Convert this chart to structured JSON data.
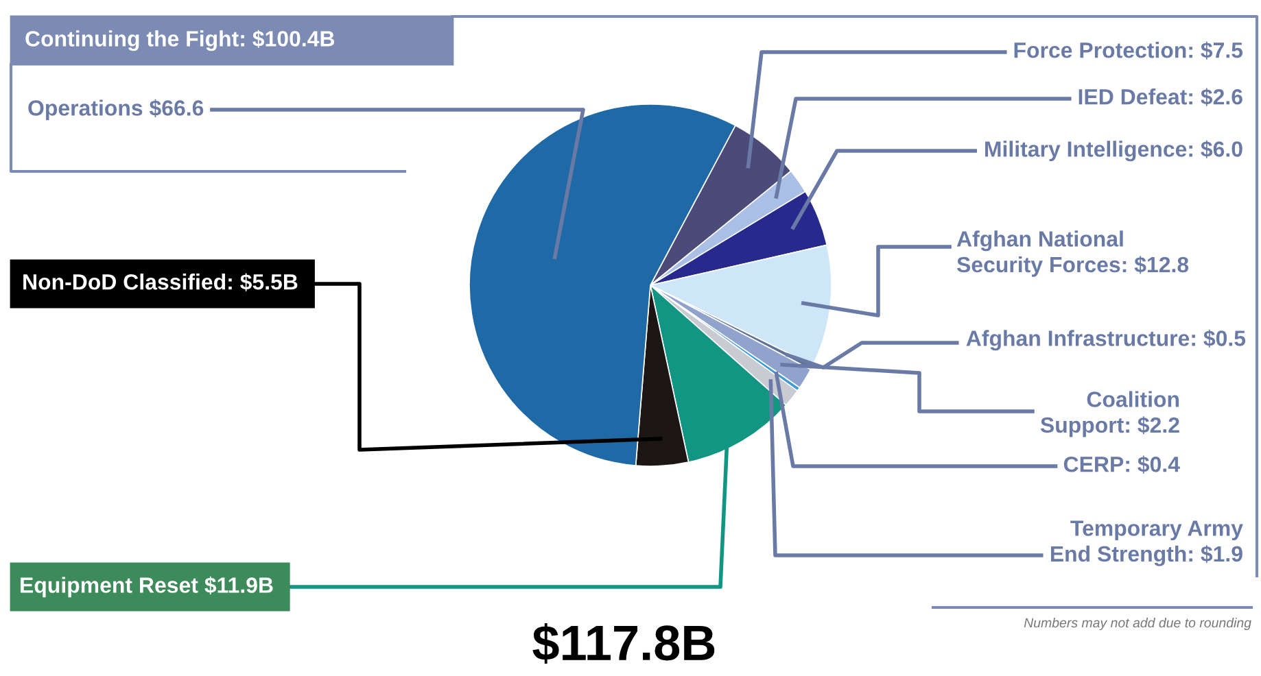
{
  "chart_data": {
    "type": "pie",
    "categories": [
      "Force Protection",
      "IED Defeat",
      "Military Intelligence",
      "Afghan National\nSecurity Forces",
      "Afghan Infrastructure",
      "Coalition\nSupport",
      "CERP",
      "Temporary Army\nEnd Strength",
      "Equipment Reset",
      "Non-DoD Classified",
      "Operations"
    ],
    "values": [
      7.5,
      2.6,
      6.0,
      12.8,
      0.5,
      2.2,
      0.4,
      1.9,
      11.9,
      5.5,
      66.6
    ],
    "value_labels": [
      "$7.5",
      "$2.6",
      "$6.0",
      "$12.8",
      "$0.5",
      "$2.2",
      "$0.4",
      "$1.9",
      "$11.9B",
      "$5.5B",
      "$66.6"
    ],
    "colors": [
      "#4b4a78",
      "#a9bfe6",
      "#27298c",
      "#cde6f8",
      "#5f7396",
      "#8fa3cc",
      "#3d9ad8",
      "#c9cbd3",
      "#129583",
      "#1c1614",
      "#1f6aa6"
    ],
    "annotations": [
      "Continuing the Fight: $100.4B",
      "$117.8B",
      "Numbers may not add due to rounding"
    ]
  }
}
